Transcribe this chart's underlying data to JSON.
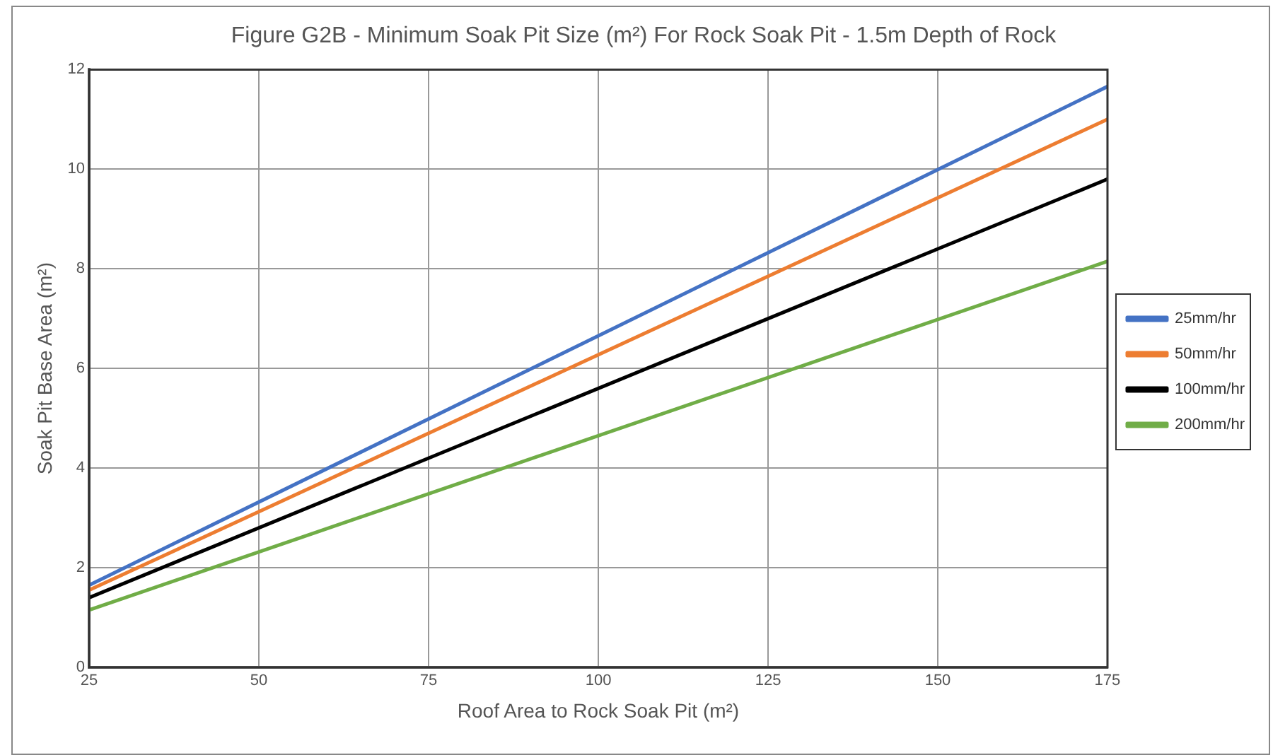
{
  "chart_data": {
    "type": "line",
    "title": "Figure G2B - Minimum Soak Pit Size (m²) For Rock Soak Pit - 1.5m Depth of Rock",
    "xlabel": "Roof Area to Rock Soak Pit (m²)",
    "ylabel": "Soak Pit Base Area (m²)",
    "x": [
      25,
      175
    ],
    "series": [
      {
        "name": "25mm/hr",
        "color": "#4472c4",
        "values": [
          1.65,
          11.66
        ]
      },
      {
        "name": "50mm/hr",
        "color": "#ed7d31",
        "values": [
          1.55,
          11.0
        ]
      },
      {
        "name": "100mm/hr",
        "color": "#000000",
        "values": [
          1.4,
          9.8
        ]
      },
      {
        "name": "200mm/hr",
        "color": "#70ad47",
        "values": [
          1.15,
          8.15
        ]
      }
    ],
    "xlim": [
      25,
      175
    ],
    "xticks": [
      25,
      50,
      75,
      100,
      125,
      150,
      175
    ],
    "ylim": [
      0,
      12
    ],
    "yticks": [
      0,
      2,
      4,
      6,
      8,
      10,
      12
    ],
    "grid": true,
    "legend": "right",
    "marker": "none",
    "line_style": "solid"
  }
}
